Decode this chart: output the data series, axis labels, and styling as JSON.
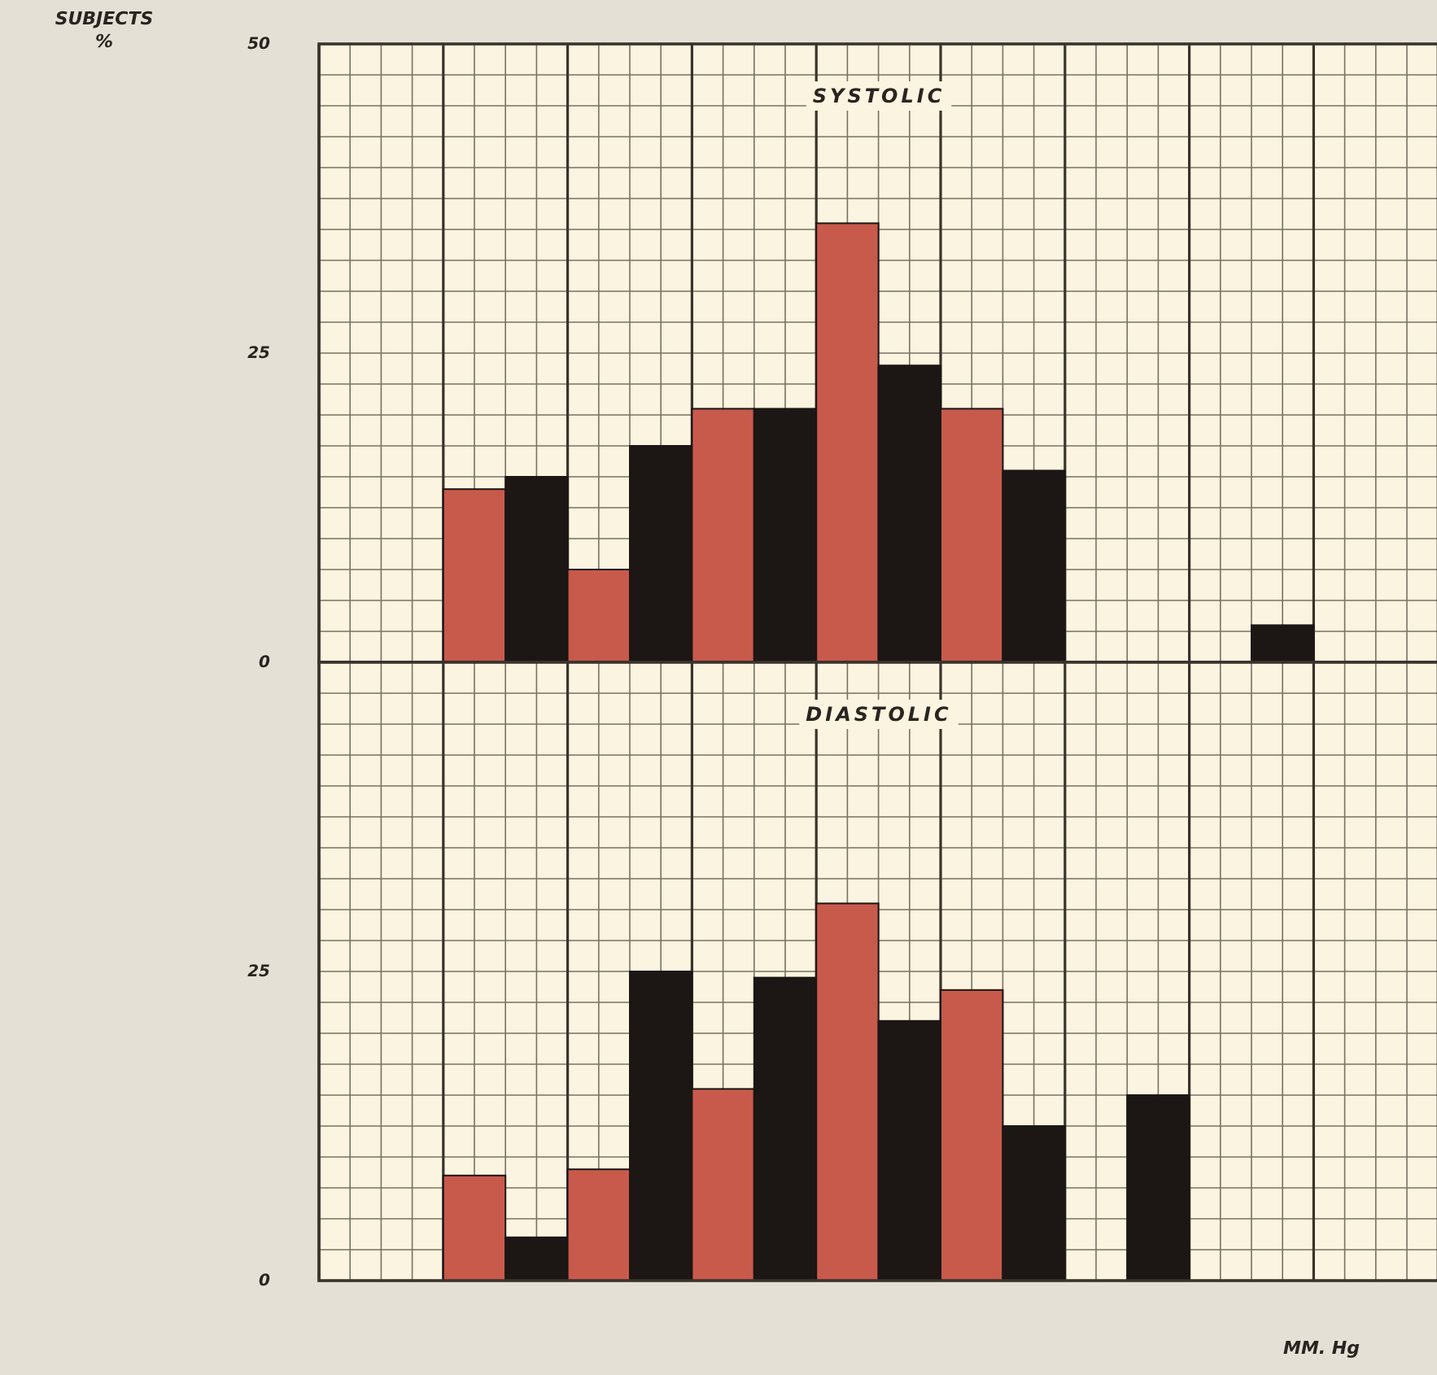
{
  "chart_data": [
    {
      "type": "bar",
      "title": "SYSTOLIC",
      "ylabel": "SUBJECTS %",
      "categories": [
        null,
        null,
        null,
        null,
        null,
        null,
        null,
        null,
        null,
        null,
        null,
        null,
        null,
        null,
        null,
        null,
        null,
        null
      ],
      "values": [
        null,
        null,
        14,
        15,
        7.5,
        17.5,
        20.5,
        20.5,
        35.5,
        24,
        20.5,
        15.5,
        null,
        null,
        null,
        3,
        null,
        null
      ],
      "colors": [
        null,
        null,
        "#c85a4c",
        "#1c1614",
        "#c85a4c",
        "#1c1614",
        "#c85a4c",
        "#1c1614",
        "#c85a4c",
        "#1c1614",
        "#c85a4c",
        "#1c1614",
        null,
        null,
        null,
        "#1c1614",
        null,
        null
      ],
      "ylim": [
        0,
        50
      ],
      "yticks": [
        0,
        {
          "value": 2.5,
          "label": null
        },
        {
          "value": 5,
          "label": null
        },
        {
          "value": 7.5,
          "label": null
        },
        {
          "value": 10,
          "label": null
        },
        {
          "value": 12.5,
          "label": null
        },
        {
          "value": 15,
          "label": null
        },
        {
          "value": 17.5,
          "label": null
        },
        {
          "value": 20,
          "label": null
        },
        {
          "value": 22.5,
          "label": null
        },
        25,
        {
          "value": 27.5,
          "label": null
        },
        {
          "value": 30,
          "label": null
        },
        {
          "value": 32.5,
          "label": null
        },
        {
          "value": 35,
          "label": null
        },
        {
          "value": 37.5,
          "label": null
        },
        {
          "value": 40,
          "label": null
        },
        {
          "value": 42.5,
          "label": null
        },
        {
          "value": 45,
          "label": null
        },
        {
          "value": 47.5,
          "label": null
        },
        50
      ],
      "grid": true
    },
    {
      "type": "bar",
      "title": "DIASTOLIC",
      "xlabel": "MM. Hg",
      "categories": [
        null,
        null,
        null,
        null,
        null,
        null,
        null,
        null,
        null,
        null,
        null,
        null,
        null,
        null,
        null,
        null,
        null,
        null
      ],
      "values": [
        null,
        null,
        8.5,
        3.5,
        9,
        25,
        15.5,
        24.5,
        30.5,
        21,
        23.5,
        12.5,
        null,
        15,
        null,
        null,
        null,
        null
      ],
      "colors": [
        null,
        null,
        "#c85a4c",
        "#1c1614",
        "#c85a4c",
        "#1c1614",
        "#c85a4c",
        "#1c1614",
        "#c85a4c",
        "#1c1614",
        "#c85a4c",
        "#1c1614",
        null,
        "#1c1614",
        null,
        null,
        null,
        null
      ],
      "ylim": [
        0,
        50
      ],
      "yticks": [
        0,
        {
          "value": 2.5,
          "label": null
        },
        {
          "value": 5,
          "label": null
        },
        {
          "value": 7.5,
          "label": null
        },
        {
          "value": 10,
          "label": null
        },
        {
          "value": 12.5,
          "label": null
        },
        {
          "value": 15,
          "label": null
        },
        {
          "value": 17.5,
          "label": null
        },
        {
          "value": 20,
          "label": null
        },
        {
          "value": 22.5,
          "label": null
        },
        25,
        {
          "value": 27.5,
          "label": null
        },
        {
          "value": 30,
          "label": null
        },
        {
          "value": 32.5,
          "label": null
        },
        {
          "value": 35,
          "label": null
        },
        {
          "value": 37.5,
          "label": null
        },
        {
          "value": 40,
          "label": null
        },
        {
          "value": 42.5,
          "label": null
        },
        {
          "value": 45,
          "label": null
        },
        {
          "value": 47.5,
          "label": null
        }
      ],
      "grid": true
    }
  ]
}
